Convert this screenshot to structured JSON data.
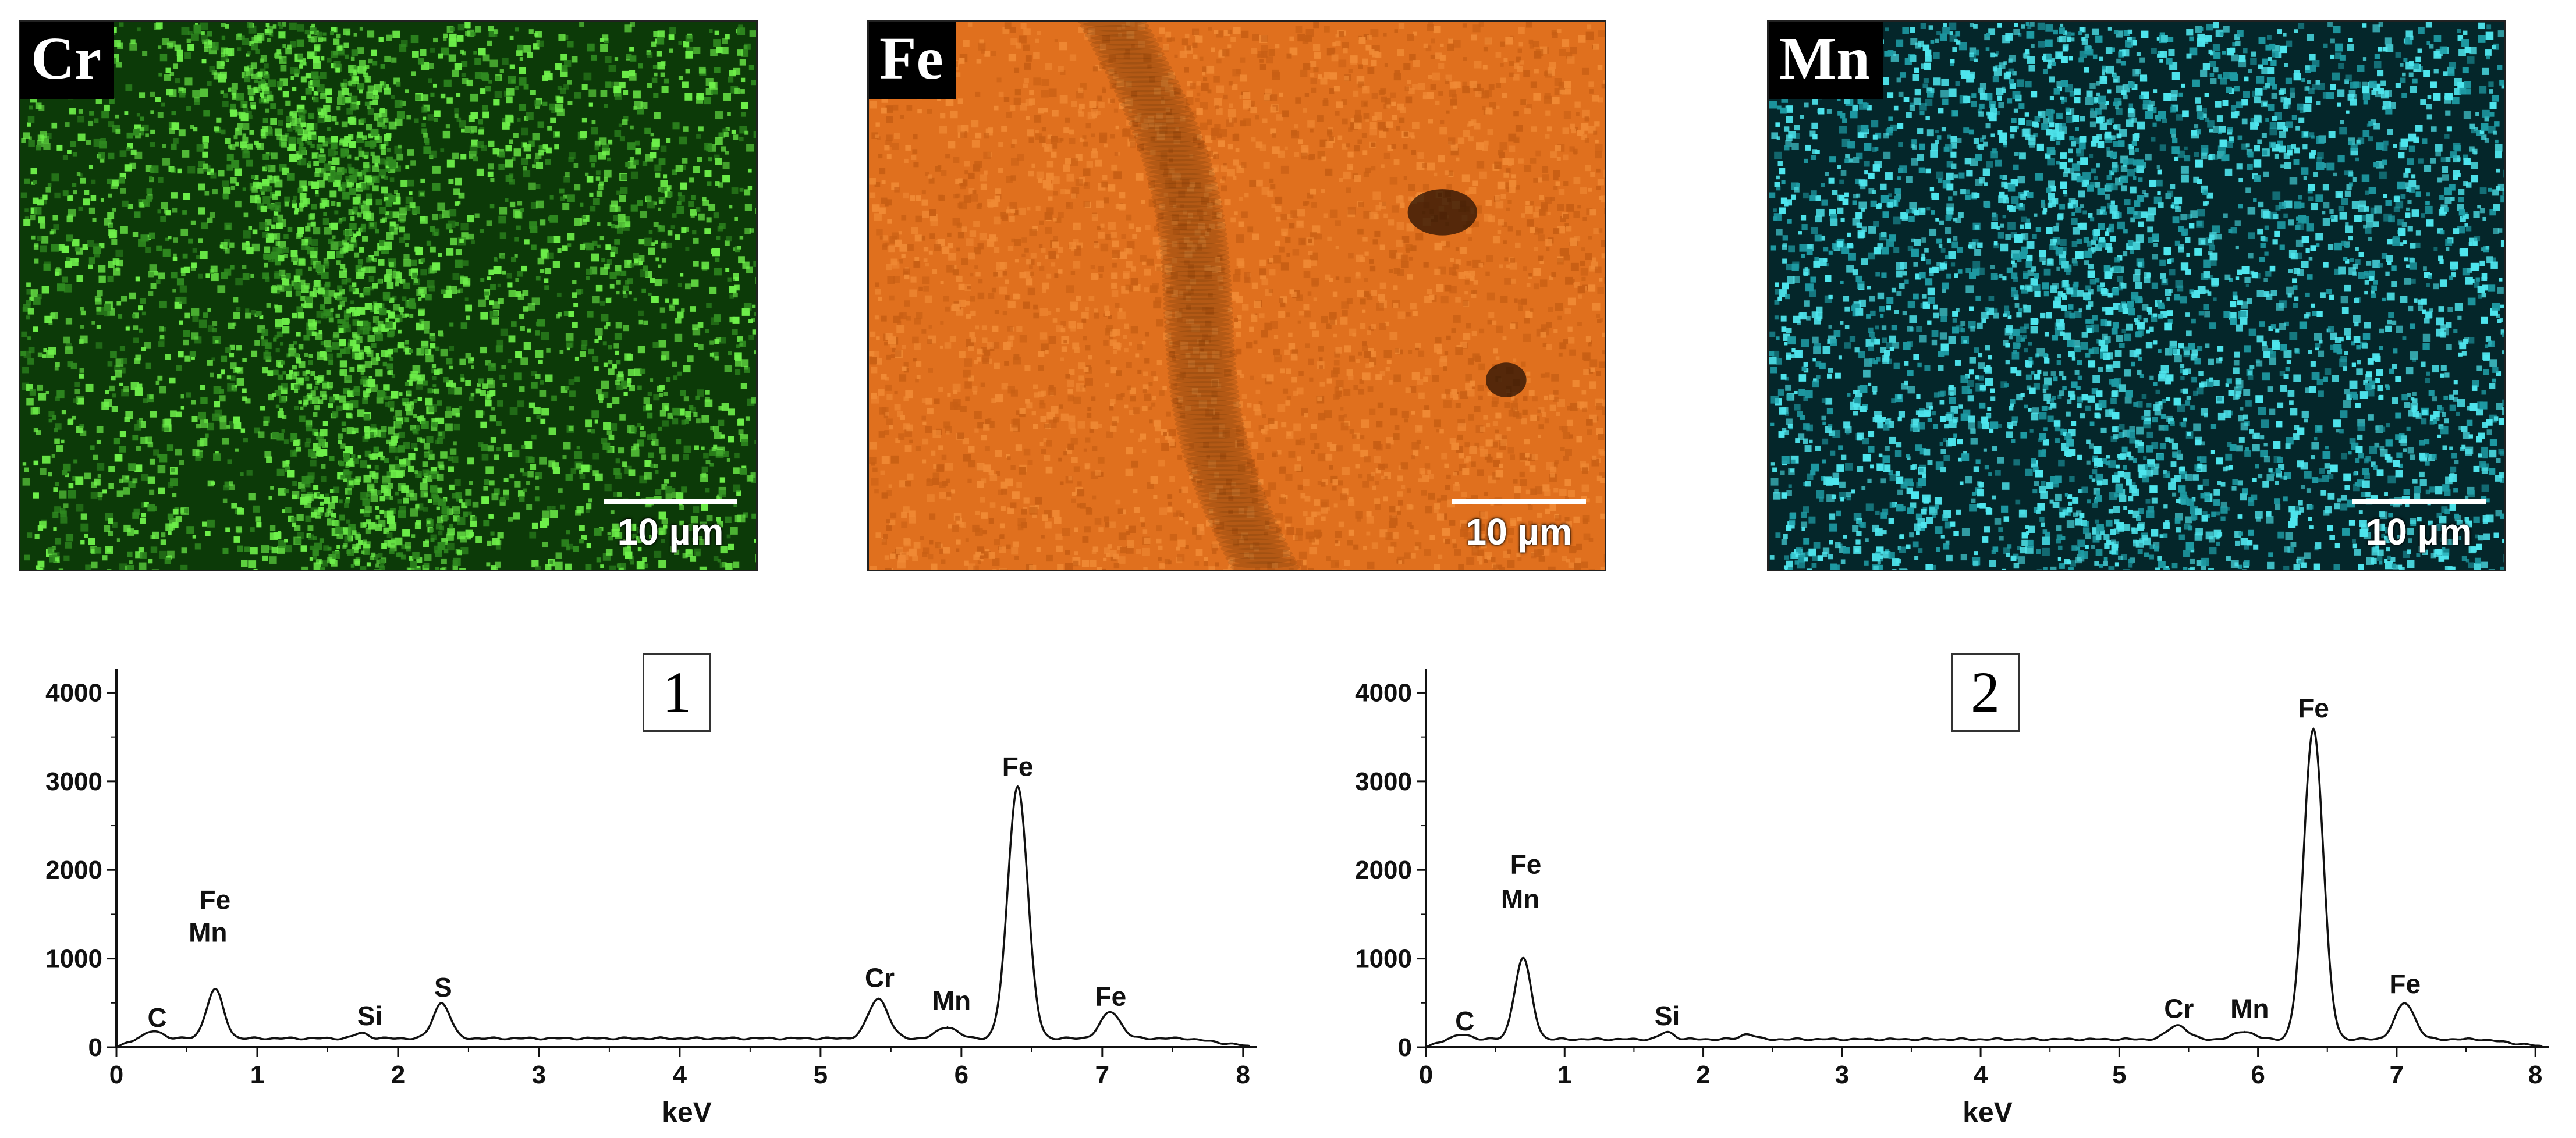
{
  "maps": [
    {
      "label": "Cr",
      "scale": "10 µm",
      "base": "#0c3a08",
      "hi": "#6ef04a",
      "band": "cr"
    },
    {
      "label": "Fe",
      "scale": "10 µm",
      "base": "#e0701e",
      "hi": "#f6a05a",
      "band": "fe"
    },
    {
      "label": "Mn",
      "scale": "10 µm",
      "base": "#04262a",
      "hi": "#4fe6ee",
      "band": "mn"
    }
  ],
  "chart_data": [
    {
      "type": "line",
      "panel_label": "1",
      "xlabel": "keV",
      "ylabel": "",
      "xlim": [
        0,
        8.1
      ],
      "ylim": [
        0,
        4200
      ],
      "x_ticks": [
        0,
        1,
        2,
        3,
        4,
        5,
        6,
        7,
        8
      ],
      "y_ticks": [
        0,
        1000,
        2000,
        3000,
        4000
      ],
      "baseline": 100,
      "peaks": [
        {
          "x": 0.27,
          "y": 180,
          "w": 0.06
        },
        {
          "x": 0.7,
          "y": 650,
          "w": 0.06
        },
        {
          "x": 1.74,
          "y": 160,
          "w": 0.05
        },
        {
          "x": 2.31,
          "y": 500,
          "w": 0.06
        },
        {
          "x": 5.41,
          "y": 550,
          "w": 0.07
        },
        {
          "x": 5.9,
          "y": 230,
          "w": 0.07
        },
        {
          "x": 6.4,
          "y": 2950,
          "w": 0.07
        },
        {
          "x": 7.06,
          "y": 400,
          "w": 0.07
        }
      ],
      "annotations": [
        {
          "text": "C",
          "x": 0.29,
          "y": 230
        },
        {
          "text": "Fe",
          "x": 0.7,
          "y": 1560
        },
        {
          "text": "Mn",
          "x": 0.65,
          "y": 1190
        },
        {
          "text": "Si",
          "x": 1.8,
          "y": 250
        },
        {
          "text": "S",
          "x": 2.32,
          "y": 570
        },
        {
          "text": "Cr",
          "x": 5.42,
          "y": 680
        },
        {
          "text": "Mn",
          "x": 5.93,
          "y": 420
        },
        {
          "text": "Fe",
          "x": 6.4,
          "y": 3060
        },
        {
          "text": "Fe",
          "x": 7.06,
          "y": 470
        }
      ]
    },
    {
      "type": "line",
      "panel_label": "2",
      "xlabel": "keV",
      "ylabel": "",
      "xlim": [
        0,
        8.1
      ],
      "ylim": [
        0,
        4200
      ],
      "x_ticks": [
        0,
        1,
        2,
        3,
        4,
        5,
        6,
        7,
        8
      ],
      "y_ticks": [
        0,
        1000,
        2000,
        3000,
        4000
      ],
      "baseline": 90,
      "peaks": [
        {
          "x": 0.27,
          "y": 140,
          "w": 0.06
        },
        {
          "x": 0.7,
          "y": 1000,
          "w": 0.06
        },
        {
          "x": 1.74,
          "y": 170,
          "w": 0.05
        },
        {
          "x": 2.32,
          "y": 150,
          "w": 0.05
        },
        {
          "x": 5.42,
          "y": 250,
          "w": 0.07
        },
        {
          "x": 5.9,
          "y": 180,
          "w": 0.07
        },
        {
          "x": 6.4,
          "y": 3600,
          "w": 0.07
        },
        {
          "x": 7.06,
          "y": 500,
          "w": 0.07
        }
      ],
      "annotations": [
        {
          "text": "C",
          "x": 0.28,
          "y": 190
        },
        {
          "text": "Fe",
          "x": 0.72,
          "y": 1960
        },
        {
          "text": "Mn",
          "x": 0.68,
          "y": 1570
        },
        {
          "text": "Si",
          "x": 1.74,
          "y": 250
        },
        {
          "text": "Cr",
          "x": 5.43,
          "y": 330
        },
        {
          "text": "Mn",
          "x": 5.94,
          "y": 330
        },
        {
          "text": "Fe",
          "x": 6.4,
          "y": 3720
        },
        {
          "text": "Fe",
          "x": 7.06,
          "y": 610
        }
      ]
    }
  ]
}
